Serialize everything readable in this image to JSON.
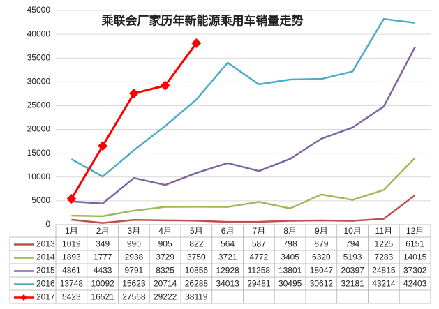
{
  "chart_data": {
    "type": "line",
    "title": "乘联会厂家历年新能源乘用车销量走势",
    "categories": [
      "1月",
      "2月",
      "3月",
      "4月",
      "5月",
      "6月",
      "7月",
      "8月",
      "9月",
      "10月",
      "11月",
      "12月"
    ],
    "ylim": [
      0,
      45000
    ],
    "yticks": [
      0,
      5000,
      10000,
      15000,
      20000,
      25000,
      30000,
      35000,
      40000,
      45000
    ],
    "grid": true,
    "series": [
      {
        "name": "2013",
        "color": "#c0504d",
        "values": [
          1019,
          349,
          990,
          905,
          822,
          564,
          587,
          798,
          879,
          794,
          1225,
          6151
        ]
      },
      {
        "name": "2014",
        "color": "#9bbb59",
        "values": [
          1893,
          1777,
          2938,
          3729,
          3750,
          3721,
          4772,
          3405,
          6320,
          5193,
          7283,
          14015
        ]
      },
      {
        "name": "2015",
        "color": "#8064a2",
        "values": [
          4861,
          4433,
          9791,
          8325,
          10856,
          12928,
          11258,
          13801,
          18047,
          20397,
          24815,
          37302
        ]
      },
      {
        "name": "2016",
        "color": "#4bacc6",
        "values": [
          13748,
          10092,
          15623,
          20714,
          26288,
          34013,
          29481,
          30495,
          30612,
          32181,
          43214,
          42403
        ]
      },
      {
        "name": "2017",
        "color": "#ff0000",
        "marker": "diamond",
        "values": [
          5423,
          16521,
          27568,
          29222,
          38119,
          null,
          null,
          null,
          null,
          null,
          null,
          null
        ]
      }
    ]
  }
}
